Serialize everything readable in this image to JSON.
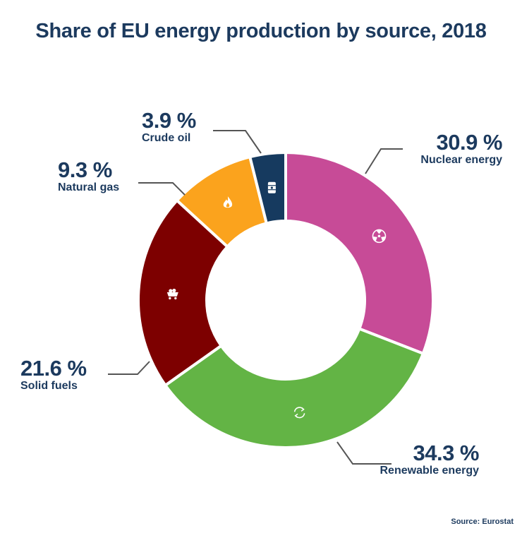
{
  "title": "Share of EU energy production by source, 2018",
  "source": "Source: Eurostat",
  "colors": {
    "text": "#1c3a5e",
    "leader": "#555555"
  },
  "chart_data": {
    "type": "pie",
    "variant": "donut",
    "title": "Share of EU energy production by source, 2018",
    "unit": "%",
    "slices": [
      {
        "label": "Nuclear energy",
        "value": 30.9,
        "value_text": "30.9 %",
        "color": "#c74b97",
        "icon": "radiation-icon"
      },
      {
        "label": "Renewable energy",
        "value": 34.3,
        "value_text": "34.3 %",
        "color": "#63b445",
        "icon": "recycle-icon"
      },
      {
        "label": "Solid fuels",
        "value": 21.6,
        "value_text": "21.6 %",
        "color": "#7d0000",
        "icon": "coal-cart-icon"
      },
      {
        "label": "Natural gas",
        "value": 9.3,
        "value_text": "9.3 %",
        "color": "#fba31d",
        "icon": "flame-icon"
      },
      {
        "label": "Crude oil",
        "value": 3.9,
        "value_text": "3.9 %",
        "color": "#163a5f",
        "icon": "oil-barrel-icon"
      }
    ]
  }
}
